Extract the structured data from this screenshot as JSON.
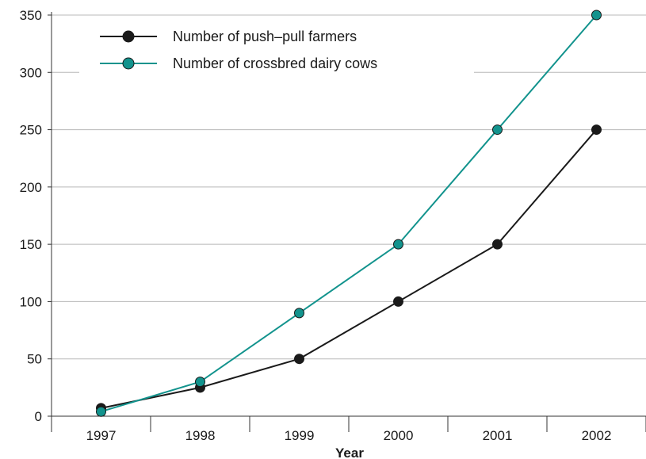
{
  "chart_data": {
    "type": "line",
    "title": "",
    "xlabel": "Year",
    "ylabel": "",
    "categories": [
      "1997",
      "1998",
      "1999",
      "2000",
      "2001",
      "2002"
    ],
    "ylim": [
      0,
      350
    ],
    "yticks": [
      "0",
      "50",
      "100",
      "150",
      "200",
      "250",
      "300",
      "350"
    ],
    "grid": "horizontal",
    "legend_position": "top-left",
    "series": [
      {
        "name": "Number of push–pull farmers",
        "values": [
          7,
          25,
          50,
          100,
          150,
          250
        ],
        "color": "#1a1a1a",
        "marker_color": "#1a1a1a"
      },
      {
        "name": "Number of crossbred dairy cows",
        "values": [
          4,
          30,
          90,
          150,
          250,
          350
        ],
        "color": "#12938d",
        "marker_color": "#12938d"
      }
    ]
  }
}
